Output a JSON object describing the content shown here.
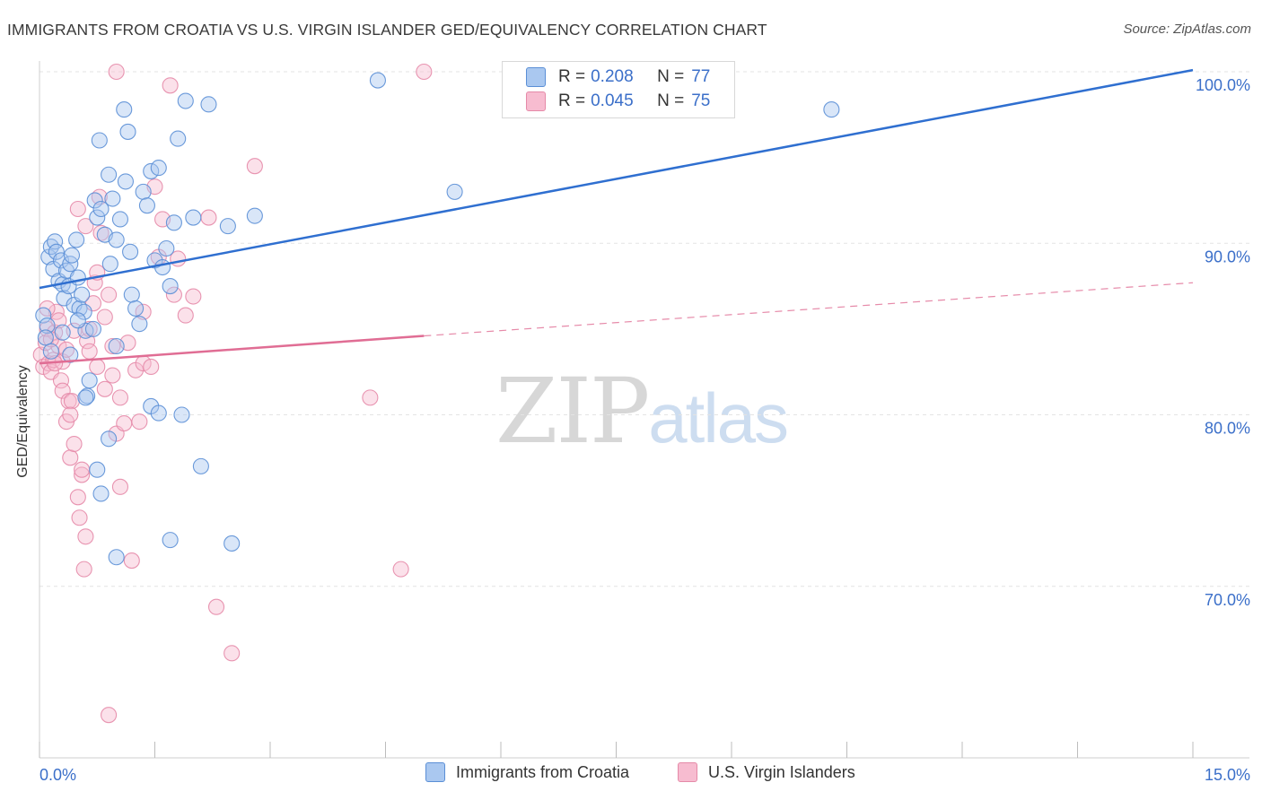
{
  "title": "IMMIGRANTS FROM CROATIA VS U.S. VIRGIN ISLANDER GED/EQUIVALENCY CORRELATION CHART",
  "source": "Source: ZipAtlas.com",
  "watermark": {
    "zip": "ZIP",
    "atlas": "atlas"
  },
  "legend_top": [
    {
      "r_label": "R =",
      "r_value": "0.208",
      "n_label": "N =",
      "n_value": "77"
    },
    {
      "r_label": "R =",
      "r_value": "0.045",
      "n_label": "N =",
      "n_value": "75"
    }
  ],
  "legend_bottom": [
    "Immigrants from Croatia",
    "U.S. Virgin Islanders"
  ],
  "colors": {
    "croatia_fill": "#aac8f0",
    "croatia_stroke": "#5b8fd6",
    "croatia_line": "#2f6fd0",
    "virgin_fill": "#f7bcd0",
    "virgin_stroke": "#e58aa8",
    "virgin_line": "#e06d94",
    "grid": "#e3e3e3",
    "tick_label": "#3b6fc9"
  },
  "chart_data": {
    "type": "scatter",
    "title": "IMMIGRANTS FROM CROATIA VS U.S. VIRGIN ISLANDER GED/EQUIVALENCY CORRELATION CHART",
    "xlabel": "",
    "ylabel": "GED/Equivalency",
    "xlim": [
      0,
      15
    ],
    "ylim": [
      60,
      100
    ],
    "x_tick_labels": [
      "0.0%",
      "15.0%"
    ],
    "y_ticks": [
      70,
      80,
      90,
      100
    ],
    "y_tick_labels": [
      "70.0%",
      "80.0%",
      "90.0%",
      "100.0%"
    ],
    "grid": true,
    "legend_position": "top-center",
    "series": [
      {
        "name": "Immigrants from Croatia",
        "trend": {
          "x": [
            0,
            15
          ],
          "y": [
            87.4,
            100.1
          ],
          "style": "solid"
        },
        "points": [
          [
            0.05,
            85.8
          ],
          [
            0.1,
            85.2
          ],
          [
            0.08,
            84.5
          ],
          [
            0.12,
            89.2
          ],
          [
            0.15,
            89.8
          ],
          [
            0.18,
            88.5
          ],
          [
            0.2,
            90.1
          ],
          [
            0.22,
            89.5
          ],
          [
            0.25,
            87.8
          ],
          [
            0.28,
            89.0
          ],
          [
            0.3,
            87.6
          ],
          [
            0.32,
            86.8
          ],
          [
            0.35,
            88.4
          ],
          [
            0.38,
            87.5
          ],
          [
            0.4,
            88.8
          ],
          [
            0.42,
            89.3
          ],
          [
            0.45,
            86.4
          ],
          [
            0.48,
            90.2
          ],
          [
            0.5,
            88.0
          ],
          [
            0.52,
            86.2
          ],
          [
            0.55,
            87.0
          ],
          [
            0.58,
            86.0
          ],
          [
            0.6,
            84.9
          ],
          [
            0.62,
            81.1
          ],
          [
            0.65,
            82.0
          ],
          [
            0.7,
            85.0
          ],
          [
            0.72,
            92.5
          ],
          [
            0.75,
            91.5
          ],
          [
            0.78,
            96.0
          ],
          [
            0.8,
            92.0
          ],
          [
            0.85,
            90.5
          ],
          [
            0.9,
            94.0
          ],
          [
            0.92,
            88.8
          ],
          [
            0.95,
            92.6
          ],
          [
            1.0,
            90.2
          ],
          [
            1.05,
            91.4
          ],
          [
            1.1,
            97.8
          ],
          [
            1.12,
            93.6
          ],
          [
            1.15,
            96.5
          ],
          [
            1.18,
            89.5
          ],
          [
            1.2,
            87.0
          ],
          [
            1.25,
            86.2
          ],
          [
            1.3,
            85.3
          ],
          [
            1.35,
            93.0
          ],
          [
            1.4,
            92.2
          ],
          [
            1.45,
            94.2
          ],
          [
            1.5,
            89.0
          ],
          [
            1.55,
            94.4
          ],
          [
            1.6,
            88.6
          ],
          [
            1.65,
            89.7
          ],
          [
            1.7,
            87.5
          ],
          [
            1.75,
            91.2
          ],
          [
            1.8,
            96.1
          ],
          [
            1.85,
            80.0
          ],
          [
            1.9,
            98.3
          ],
          [
            2.0,
            91.5
          ],
          [
            2.1,
            77.0
          ],
          [
            2.2,
            98.1
          ],
          [
            2.45,
            91.0
          ],
          [
            2.5,
            72.5
          ],
          [
            2.8,
            91.6
          ],
          [
            0.75,
            76.8
          ],
          [
            0.8,
            75.4
          ],
          [
            0.9,
            78.6
          ],
          [
            1.0,
            71.7
          ],
          [
            1.45,
            80.5
          ],
          [
            1.55,
            80.1
          ],
          [
            1.7,
            72.7
          ],
          [
            4.4,
            99.5
          ],
          [
            5.4,
            93.0
          ],
          [
            10.3,
            97.8
          ],
          [
            0.15,
            83.7
          ],
          [
            0.4,
            83.5
          ],
          [
            0.6,
            81.0
          ],
          [
            1.0,
            84.0
          ],
          [
            0.3,
            84.8
          ],
          [
            0.5,
            85.5
          ]
        ]
      },
      {
        "name": "U.S. Virgin Islanders",
        "trend": {
          "x": [
            0,
            5.0
          ],
          "y": [
            83.0,
            84.6
          ],
          "style": "solid",
          "dashed_extension": {
            "x": [
              5.0,
              15
            ],
            "y": [
              84.6,
              87.7
            ]
          }
        },
        "points": [
          [
            0.02,
            83.5
          ],
          [
            0.05,
            82.8
          ],
          [
            0.08,
            84.2
          ],
          [
            0.1,
            85.0
          ],
          [
            0.12,
            83.0
          ],
          [
            0.15,
            82.5
          ],
          [
            0.18,
            83.2
          ],
          [
            0.2,
            84.8
          ],
          [
            0.22,
            86.0
          ],
          [
            0.25,
            84.0
          ],
          [
            0.28,
            82.0
          ],
          [
            0.3,
            81.4
          ],
          [
            0.35,
            79.6
          ],
          [
            0.38,
            80.8
          ],
          [
            0.4,
            77.5
          ],
          [
            0.45,
            78.3
          ],
          [
            0.5,
            75.2
          ],
          [
            0.52,
            74.0
          ],
          [
            0.55,
            76.5
          ],
          [
            0.58,
            71.0
          ],
          [
            0.6,
            72.9
          ],
          [
            0.62,
            84.3
          ],
          [
            0.65,
            83.7
          ],
          [
            0.7,
            86.5
          ],
          [
            0.72,
            87.7
          ],
          [
            0.75,
            88.3
          ],
          [
            0.78,
            92.7
          ],
          [
            0.8,
            90.6
          ],
          [
            0.85,
            85.7
          ],
          [
            0.9,
            87.0
          ],
          [
            0.95,
            82.3
          ],
          [
            1.0,
            78.9
          ],
          [
            1.05,
            81.0
          ],
          [
            1.1,
            79.5
          ],
          [
            1.15,
            84.2
          ],
          [
            1.2,
            71.5
          ],
          [
            1.25,
            82.6
          ],
          [
            1.3,
            79.6
          ],
          [
            1.35,
            83.0
          ],
          [
            1.45,
            82.8
          ],
          [
            1.5,
            93.3
          ],
          [
            1.55,
            89.2
          ],
          [
            1.6,
            91.4
          ],
          [
            1.7,
            99.2
          ],
          [
            1.75,
            87.0
          ],
          [
            1.8,
            89.1
          ],
          [
            1.9,
            85.8
          ],
          [
            2.0,
            86.9
          ],
          [
            2.2,
            91.5
          ],
          [
            2.3,
            68.8
          ],
          [
            2.5,
            66.1
          ],
          [
            2.8,
            94.5
          ],
          [
            1.0,
            100.0
          ],
          [
            4.3,
            81.0
          ],
          [
            4.7,
            71.0
          ],
          [
            5.0,
            100.0
          ],
          [
            0.9,
            62.5
          ],
          [
            0.55,
            76.8
          ],
          [
            0.42,
            80.8
          ],
          [
            0.3,
            83.1
          ],
          [
            0.15,
            84.4
          ],
          [
            0.2,
            83.0
          ],
          [
            0.65,
            85.0
          ],
          [
            0.95,
            84.0
          ],
          [
            1.35,
            86.0
          ],
          [
            0.5,
            92.0
          ],
          [
            0.6,
            91.0
          ],
          [
            0.75,
            82.8
          ],
          [
            0.85,
            81.5
          ],
          [
            0.25,
            85.5
          ],
          [
            0.45,
            84.9
          ],
          [
            0.1,
            86.2
          ],
          [
            0.35,
            83.8
          ],
          [
            0.4,
            80.0
          ],
          [
            1.05,
            75.8
          ]
        ]
      }
    ]
  }
}
